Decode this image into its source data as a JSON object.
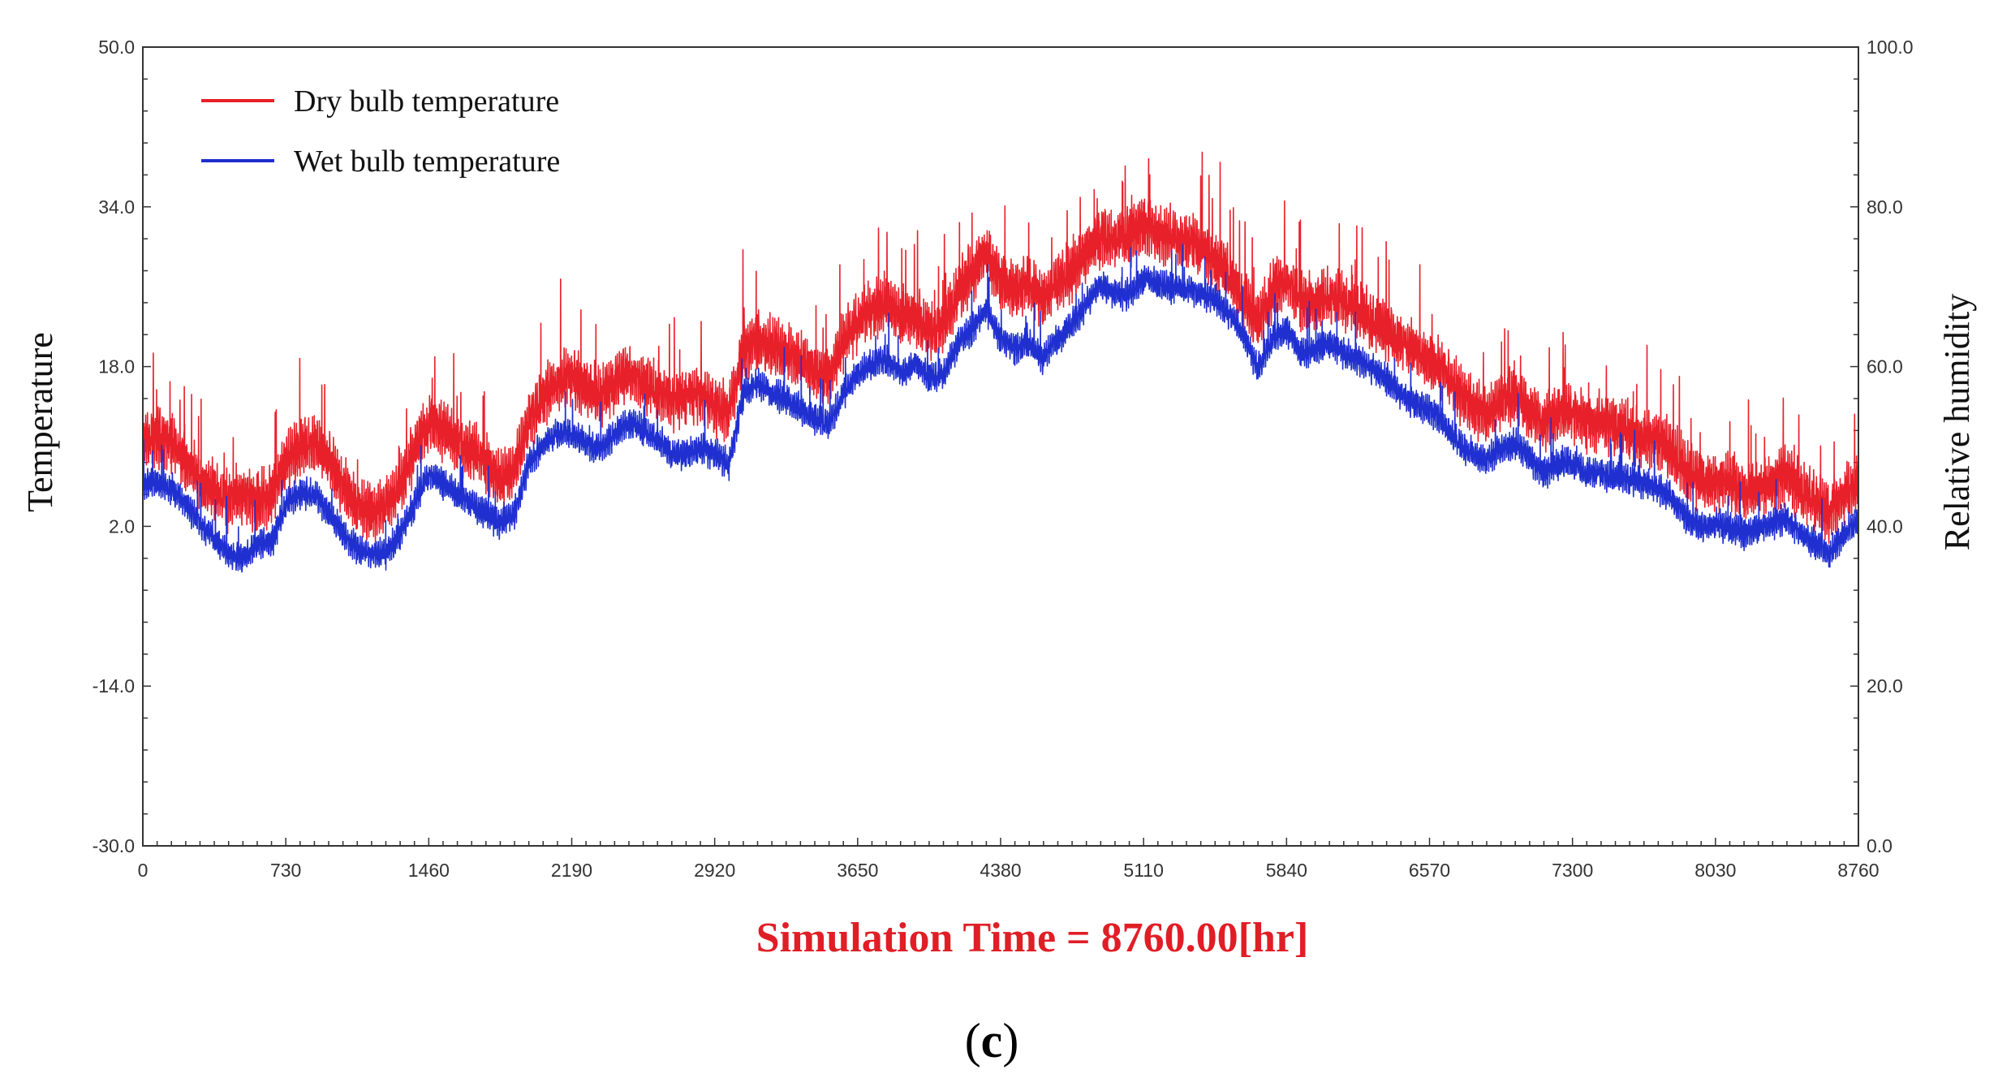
{
  "chart_data": {
    "type": "line",
    "title": "",
    "xlabel": "",
    "ylabel": "Temperature",
    "y2label": "Relative humidity",
    "xlim": [
      0,
      8760
    ],
    "ylim": [
      -30,
      50
    ],
    "y2lim": [
      0,
      100
    ],
    "x_ticks": [
      "0",
      "730",
      "1460",
      "2190",
      "2920",
      "3650",
      "4380",
      "5110",
      "5840",
      "6570",
      "7300",
      "8030",
      "8760"
    ],
    "y_ticks": [
      "50.0",
      "34.0",
      "18.0",
      "2.0",
      "-14.0",
      "-30.0"
    ],
    "y2_ticks": [
      "100.0",
      "80.0",
      "60.0",
      "40.0",
      "20.0",
      "0.0"
    ],
    "legend_position": "top-left",
    "x_step": 73,
    "series": [
      {
        "name": "Dry bulb temperature",
        "color": "#e8202a",
        "base": [
          10,
          10.5,
          10,
          8,
          6,
          5,
          4,
          4.5,
          4,
          4.5,
          8,
          9.5,
          10,
          8,
          5.5,
          3.5,
          3,
          3.5,
          5.5,
          9,
          12,
          11,
          10,
          9,
          8,
          6,
          7,
          12,
          14.5,
          16,
          16.5,
          15.5,
          14.5,
          16,
          17,
          16,
          15,
          14,
          14.5,
          15,
          13.5,
          13,
          19,
          20,
          19.5,
          19,
          18,
          17,
          16.5,
          20,
          22,
          23,
          24,
          22.5,
          22.5,
          21,
          21.5,
          25,
          27,
          29,
          26,
          25,
          26,
          24,
          26,
          27,
          29,
          30.5,
          30,
          30.5,
          31.5,
          31,
          30.5,
          30,
          29.5,
          28,
          26.5,
          24,
          22,
          25,
          26,
          24,
          24,
          24.5,
          24,
          23,
          22,
          21,
          20,
          19,
          18,
          17,
          15,
          13.5,
          13,
          14,
          14.5,
          13,
          12,
          13,
          13,
          12,
          12,
          11.5,
          11,
          10.5,
          10,
          9,
          7,
          6,
          6,
          6,
          5,
          5.5,
          6,
          6.5,
          5,
          4,
          3,
          4.5,
          6
        ],
        "amp": 3.5,
        "seed": 11
      },
      {
        "name": "Wet bulb temperature",
        "color": "#1f2fd0",
        "base": [
          6,
          6,
          5.5,
          4,
          2,
          0.5,
          -1,
          -1.5,
          0,
          0,
          4,
          5,
          5,
          3,
          1,
          -0.5,
          -1,
          -1,
          1,
          4,
          7,
          6,
          5,
          4,
          3,
          2,
          3,
          8,
          10,
          11,
          11,
          10,
          9.5,
          11,
          12,
          11.5,
          10.5,
          9,
          9,
          9.5,
          9,
          8,
          15,
          16,
          15,
          14.5,
          13.5,
          12.5,
          12,
          15,
          17,
          18,
          18.5,
          17,
          18,
          16.5,
          17,
          20,
          21.5,
          23.5,
          20.5,
          19.5,
          20,
          18.5,
          20.5,
          22,
          24,
          26,
          25,
          25,
          26.5,
          26,
          25.5,
          25.5,
          25,
          24.5,
          23,
          21,
          17.5,
          20.5,
          21.5,
          19,
          19.5,
          20,
          19,
          18.5,
          17.5,
          16.5,
          15,
          14,
          13.5,
          12,
          10,
          9,
          8.5,
          9.5,
          10,
          8.5,
          7,
          8,
          8,
          7,
          7,
          6.5,
          6.5,
          6,
          5.5,
          4.5,
          2.5,
          1.5,
          2,
          1.5,
          1,
          1.5,
          2,
          2.5,
          1,
          0,
          -1,
          1,
          2.5
        ],
        "amp": 1.8,
        "seed": 29
      }
    ]
  },
  "simulation_label": "Simulation Time = 8760.00[hr]",
  "panel_label": {
    "open": "(",
    "letter": "c",
    "close": ")"
  }
}
